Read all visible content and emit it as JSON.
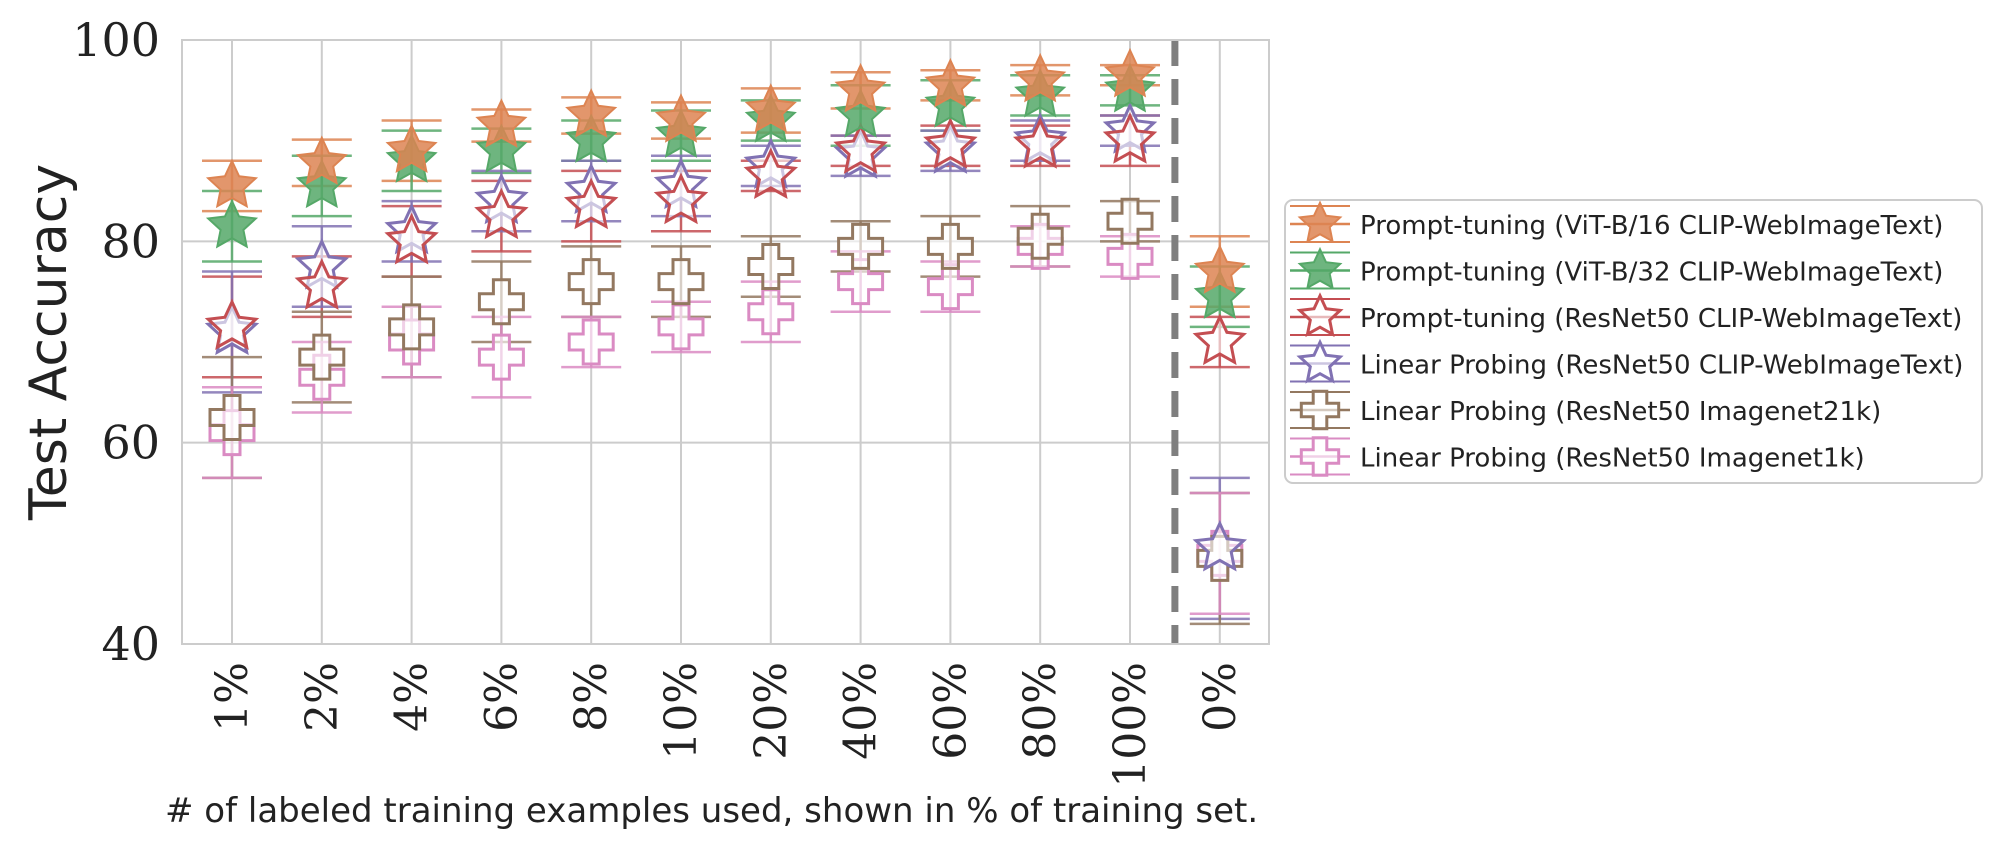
{
  "chart_data": {
    "type": "scatter",
    "title": "",
    "xlabel": "# of labeled training examples used, shown in % of training set.",
    "ylabel": "Test Accuracy",
    "ylim": [
      40,
      100
    ],
    "yticks": [
      "40",
      "60",
      "80",
      "100"
    ],
    "categories": [
      "1%",
      "2%",
      "4%",
      "6%",
      "8%",
      "10%",
      "20%",
      "40%",
      "60%",
      "80%",
      "100%",
      "0%"
    ],
    "separator_after_category": "100%",
    "legend_position": "right",
    "grid": true,
    "series": [
      {
        "name": "Prompt-tuning (ViT-B/16 CLIP-WebImageText)",
        "color": "#dd8452",
        "marker": "star-filled",
        "values": [
          85.5,
          87.8,
          89.0,
          91.5,
          92.5,
          92.0,
          93.0,
          95.0,
          95.5,
          96.0,
          96.5,
          77.0
        ],
        "errors": [
          2.5,
          2.3,
          3.0,
          1.6,
          1.8,
          1.8,
          2.2,
          1.8,
          1.5,
          1.5,
          1.0,
          3.5
        ]
      },
      {
        "name": "Prompt-tuning (ViT-B/32 CLIP-WebImageText)",
        "color": "#55a868",
        "marker": "star-filled",
        "values": [
          81.5,
          85.5,
          88.0,
          89.0,
          90.0,
          90.5,
          92.0,
          92.5,
          93.5,
          94.5,
          95.0,
          74.5
        ],
        "errors": [
          3.5,
          3.0,
          3.0,
          2.2,
          2.0,
          2.5,
          2.0,
          3.0,
          2.5,
          2.0,
          1.5,
          3.0
        ]
      },
      {
        "name": "Prompt-tuning (ResNet50 CLIP-WebImageText)",
        "color": "#c44e52",
        "marker": "star-open",
        "values": [
          71.5,
          75.5,
          80.0,
          82.5,
          83.5,
          84.0,
          86.5,
          89.0,
          89.5,
          89.5,
          90.0,
          70.0
        ],
        "errors": [
          5.0,
          3.0,
          3.5,
          3.5,
          3.5,
          3.0,
          1.5,
          1.5,
          2.0,
          2.0,
          2.5,
          2.5
        ]
      },
      {
        "name": "Linear Probing (ResNet50 CLIP-WebImageText)",
        "color": "#8172b3",
        "marker": "star-open",
        "values": [
          71.0,
          77.5,
          81.0,
          84.0,
          85.0,
          85.5,
          87.5,
          88.5,
          89.0,
          90.0,
          91.0,
          49.5
        ],
        "errors": [
          6.0,
          4.0,
          3.0,
          3.0,
          3.0,
          3.0,
          2.0,
          2.0,
          2.0,
          2.0,
          1.5,
          7.0
        ]
      },
      {
        "name": "Linear Probing (ResNet50 Imagenet21k)",
        "color": "#937860",
        "marker": "plus-open",
        "values": [
          62.5,
          68.5,
          71.5,
          74.0,
          76.0,
          76.0,
          77.5,
          79.5,
          79.5,
          80.5,
          82.0,
          48.5
        ],
        "errors": [
          6.0,
          4.5,
          5.0,
          4.0,
          3.5,
          3.5,
          3.0,
          2.5,
          3.0,
          3.0,
          2.0,
          6.5
        ]
      },
      {
        "name": "Linear Probing (ResNet50 Imagenet1k)",
        "color": "#da8bc3",
        "marker": "plus-open",
        "values": [
          61.0,
          66.5,
          70.0,
          68.5,
          70.0,
          71.5,
          73.0,
          76.0,
          75.5,
          79.5,
          78.5,
          49.0
        ],
        "errors": [
          4.5,
          3.5,
          3.5,
          4.0,
          2.5,
          2.5,
          3.0,
          3.0,
          2.5,
          2.0,
          2.0,
          6.0
        ]
      }
    ]
  }
}
